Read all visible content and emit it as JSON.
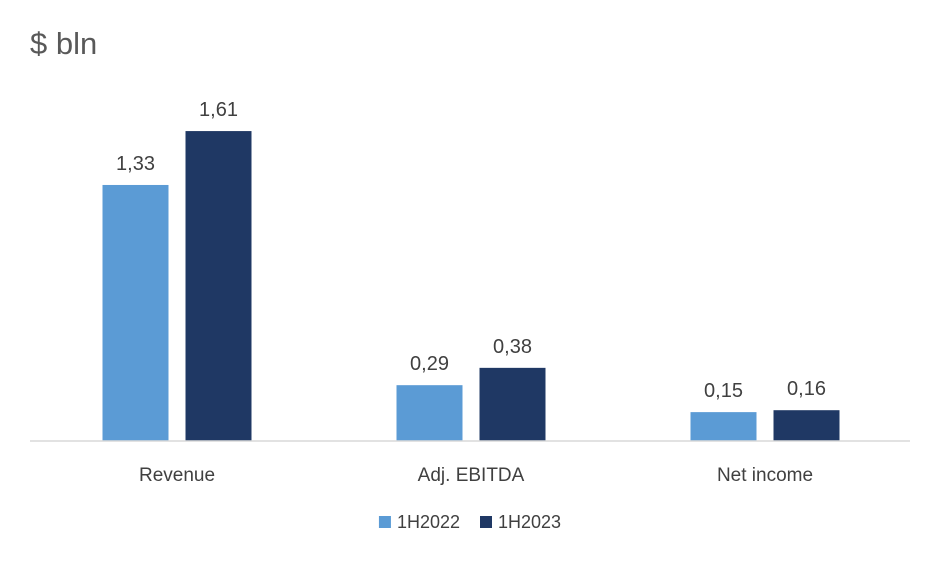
{
  "chart_data": {
    "type": "bar",
    "title": "$ bln",
    "xlabel": "",
    "ylabel": "",
    "ylim": [
      0,
      1.8
    ],
    "grid": false,
    "legend_position": "bottom",
    "categories": [
      "Revenue",
      "Adj. EBITDA",
      "Net income"
    ],
    "series": [
      {
        "name": "1H2022",
        "color": "#5B9BD5",
        "values": [
          1.33,
          0.29,
          0.15
        ],
        "labels": [
          "1,33",
          "0,29",
          "0,15"
        ]
      },
      {
        "name": "1H2023",
        "color": "#1F3864",
        "values": [
          1.61,
          0.38,
          0.16
        ],
        "labels": [
          "1,61",
          "0,38",
          "0,16"
        ]
      }
    ]
  }
}
